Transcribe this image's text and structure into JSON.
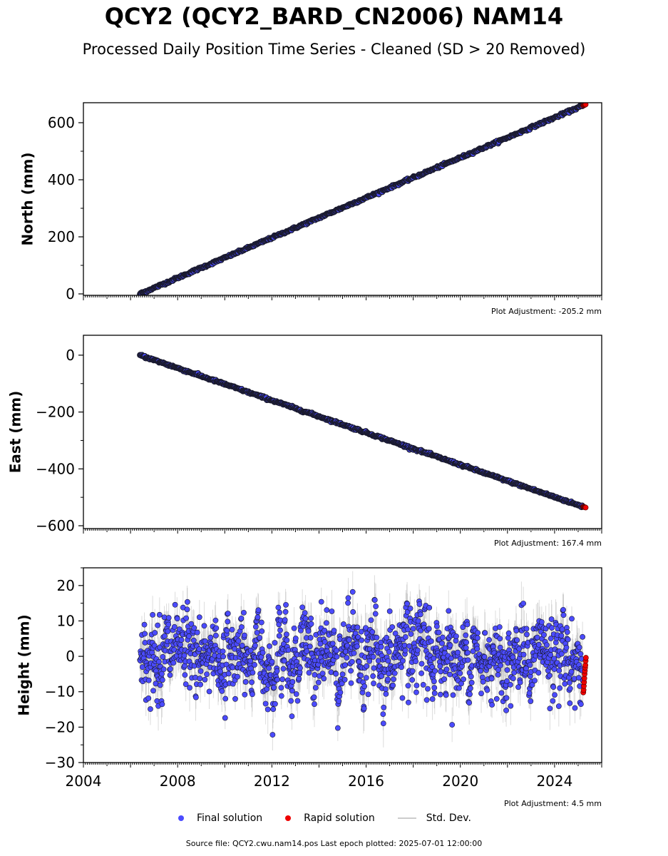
{
  "header": {
    "title": "QCY2 (QCY2_BARD_CN2006) NAM14",
    "subtitle": "Processed Daily Position Time Series - Cleaned (SD > 20 Removed)"
  },
  "colors": {
    "final": "#4b4bff",
    "rapid": "#ee0000",
    "std_dev": "#9a9a9a",
    "edge": "#1a1a2e"
  },
  "legend": {
    "final_label": "Final solution",
    "rapid_label": "Rapid solution",
    "std_label": "Std. Dev."
  },
  "footer": {
    "text": "Source file: QCY2.cwu.nam14.pos  Last epoch plotted: 2025-07-01 12:00:00"
  },
  "chart_data": [
    {
      "type": "scatter",
      "panel": "north",
      "ylabel": "North (mm)",
      "xlim": [
        2004.0,
        2026.0
      ],
      "ylim": [
        -5,
        670
      ],
      "yticks": [
        0,
        200,
        400,
        600
      ],
      "adjustment_label": "Plot Adjustment: -205.2 mm",
      "show_x_tick_labels": false,
      "final_series": {
        "start": [
          2006.4,
          0
        ],
        "end": [
          2025.2,
          660
        ]
      },
      "rapid_series": {
        "start": [
          2025.22,
          660
        ],
        "end": [
          2025.32,
          664
        ]
      }
    },
    {
      "type": "scatter",
      "panel": "east",
      "ylabel": "East (mm)",
      "xlim": [
        2004.0,
        2026.0
      ],
      "ylim": [
        -610,
        70
      ],
      "yticks": [
        0,
        -200,
        -400,
        -600
      ],
      "adjustment_label": "Plot Adjustment: 167.4 mm",
      "show_x_tick_labels": false,
      "final_series": {
        "start": [
          2006.4,
          0
        ],
        "end": [
          2025.2,
          -533
        ]
      },
      "rapid_series": {
        "start": [
          2025.22,
          -533
        ],
        "end": [
          2025.32,
          -536
        ]
      }
    },
    {
      "type": "scatter",
      "panel": "height",
      "ylabel": "Height (mm)",
      "xlim": [
        2004.0,
        2026.0
      ],
      "ylim": [
        -30,
        25
      ],
      "yticks": [
        20,
        10,
        0,
        -10,
        -20,
        -30
      ],
      "adjustment_label": "Plot Adjustment: 4.5 mm",
      "show_x_tick_labels": true,
      "xticks": [
        2004,
        2008,
        2012,
        2016,
        2020,
        2024
      ],
      "final_range": [
        2006.4,
        2025.2
      ],
      "final_noise_sd_mm": 6.5,
      "final_envelope_mm": [
        -25,
        21
      ],
      "rapid_range": [
        2025.22,
        2025.33
      ],
      "rapid_values_mm": [
        -10.2,
        -9.5,
        -8.4,
        -7.3,
        -6.2,
        -5.0,
        -4.1,
        -3.2,
        -2.5,
        -1.3,
        -0.4
      ]
    }
  ]
}
